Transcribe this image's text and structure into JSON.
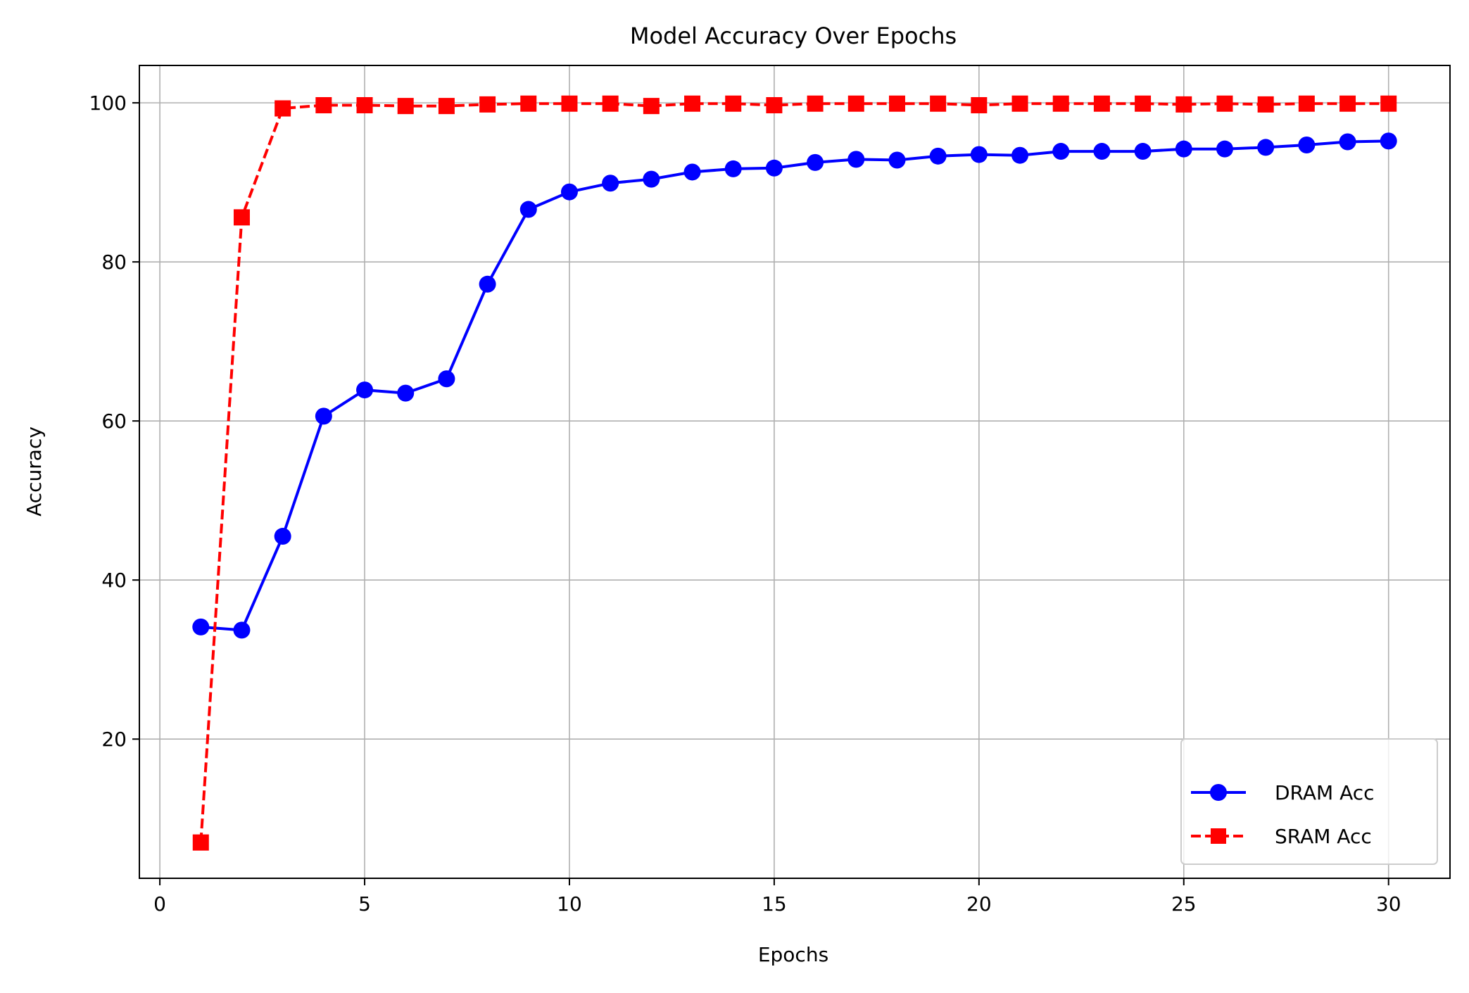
{
  "chart_data": {
    "type": "line",
    "title": "Model Accuracy Over Epochs",
    "xlabel": "Epochs",
    "ylabel": "Accuracy",
    "xlim": [
      -0.5,
      31.5
    ],
    "ylim": [
      2.5,
      104.7
    ],
    "x_ticks": [
      0,
      5,
      10,
      15,
      20,
      25,
      30
    ],
    "y_ticks": [
      20,
      40,
      60,
      80,
      100
    ],
    "grid": true,
    "legend_position": "lower-right",
    "x": [
      1,
      2,
      3,
      4,
      5,
      6,
      7,
      8,
      9,
      10,
      11,
      12,
      13,
      14,
      15,
      16,
      17,
      18,
      19,
      20,
      21,
      22,
      23,
      24,
      25,
      26,
      27,
      28,
      29,
      30
    ],
    "series": [
      {
        "name": "DRAM Acc",
        "color": "#0000ff",
        "line_style": "solid",
        "marker": "circle",
        "values": [
          34.1,
          33.7,
          45.5,
          60.6,
          63.9,
          63.5,
          65.3,
          77.2,
          86.6,
          88.8,
          89.9,
          90.4,
          91.3,
          91.7,
          91.8,
          92.5,
          92.9,
          92.8,
          93.3,
          93.5,
          93.4,
          93.9,
          93.9,
          93.9,
          94.2,
          94.2,
          94.4,
          94.7,
          95.1,
          95.2
        ]
      },
      {
        "name": "SRAM Acc",
        "color": "#ff0000",
        "line_style": "dashed",
        "marker": "square",
        "values": [
          7.0,
          85.6,
          99.3,
          99.7,
          99.7,
          99.6,
          99.6,
          99.8,
          99.9,
          99.9,
          99.9,
          99.6,
          99.9,
          99.9,
          99.7,
          99.9,
          99.9,
          99.9,
          99.9,
          99.7,
          99.9,
          99.9,
          99.9,
          99.9,
          99.8,
          99.9,
          99.8,
          99.9,
          99.9,
          99.9
        ]
      }
    ]
  }
}
